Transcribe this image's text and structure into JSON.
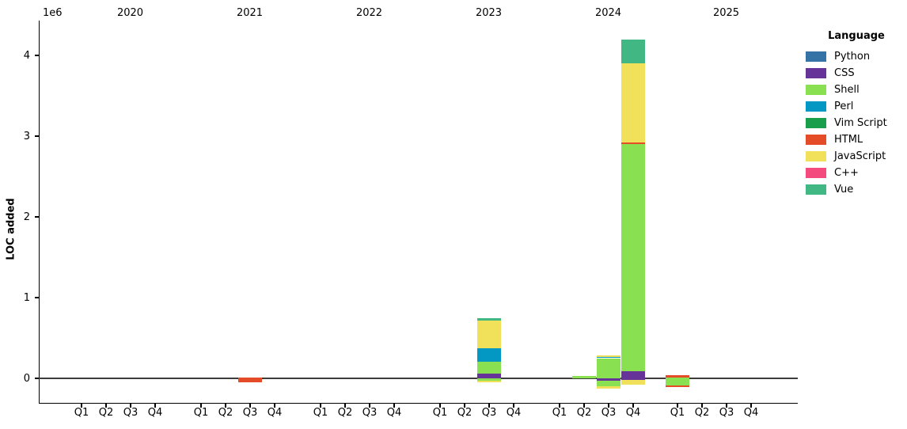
{
  "chart_data": {
    "type": "bar",
    "stacked": true,
    "title": "",
    "ylabel": "LOC added",
    "y_offset_text": "1e6",
    "y_unit": 1000000,
    "y_ticks": [
      0,
      1,
      2,
      3,
      4
    ],
    "y_tick_labels": [
      "0",
      "1",
      "2",
      "3",
      "4"
    ],
    "ylim": [
      -150000,
      4400000
    ],
    "grid": false,
    "years": [
      "2020",
      "2021",
      "2022",
      "2023",
      "2024",
      "2025"
    ],
    "quarters": [
      "Q1",
      "Q2",
      "Q3",
      "Q4"
    ],
    "legend": {
      "title": "Language",
      "position": "outside-upper-right",
      "items": [
        {
          "name": "Python",
          "color": "#3572A5"
        },
        {
          "name": "CSS",
          "color": "#663399"
        },
        {
          "name": "Shell",
          "color": "#89E051"
        },
        {
          "name": "Perl",
          "color": "#0298C3"
        },
        {
          "name": "Vim Script",
          "color": "#199F4B"
        },
        {
          "name": "HTML",
          "color": "#E34C26"
        },
        {
          "name": "JavaScript",
          "color": "#F1E05A"
        },
        {
          "name": "C++",
          "color": "#F34B7D"
        },
        {
          "name": "Vue",
          "color": "#41B883"
        }
      ]
    },
    "bars": [
      {
        "year": "2021",
        "quarter": "Q3",
        "segments": [
          {
            "language": "HTML",
            "value": 10000
          },
          {
            "language": "HTML",
            "value": -45000
          }
        ]
      },
      {
        "year": "2023",
        "quarter": "Q3",
        "segments": [
          {
            "language": "CSS",
            "value": 60000
          },
          {
            "language": "Shell",
            "value": 150000
          },
          {
            "language": "Perl",
            "value": 160000
          },
          {
            "language": "JavaScript",
            "value": 345000
          },
          {
            "language": "Vue",
            "value": 30000
          },
          {
            "language": "Shell",
            "value": -30000
          },
          {
            "language": "JavaScript",
            "value": -20000
          }
        ]
      },
      {
        "year": "2024",
        "quarter": "Q2",
        "segments": [
          {
            "language": "Shell",
            "value": 25000
          }
        ]
      },
      {
        "year": "2024",
        "quarter": "Q3",
        "segments": [
          {
            "language": "Shell",
            "value": 250000
          },
          {
            "language": "Perl",
            "value": 15000
          },
          {
            "language": "JavaScript",
            "value": 15000
          },
          {
            "language": "CSS",
            "value": -25000
          },
          {
            "language": "Shell",
            "value": -70000
          },
          {
            "language": "JavaScript",
            "value": -30000
          }
        ]
      },
      {
        "year": "2024",
        "quarter": "Q4",
        "segments": [
          {
            "language": "CSS",
            "value": 85000
          },
          {
            "language": "Shell",
            "value": 2820000
          },
          {
            "language": "HTML",
            "value": 20000
          },
          {
            "language": "JavaScript",
            "value": 975000
          },
          {
            "language": "Vue",
            "value": 295000
          },
          {
            "language": "CSS",
            "value": -20000
          },
          {
            "language": "JavaScript",
            "value": -55000
          }
        ]
      },
      {
        "year": "2025",
        "quarter": "Q1",
        "segments": [
          {
            "language": "Shell",
            "value": 10000
          },
          {
            "language": "HTML",
            "value": 30000
          },
          {
            "language": "Shell",
            "value": -85000
          },
          {
            "language": "HTML",
            "value": -25000
          }
        ]
      }
    ]
  }
}
